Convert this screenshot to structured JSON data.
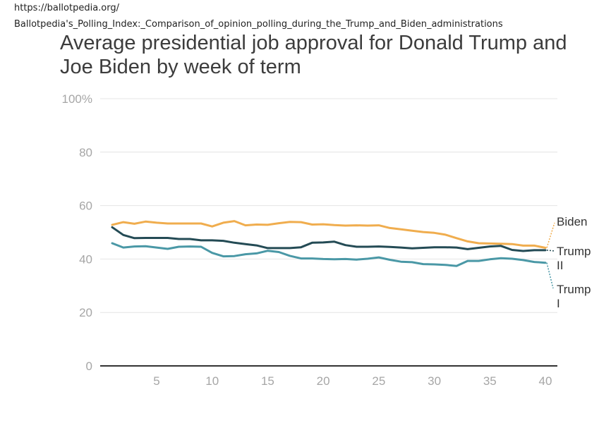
{
  "source": {
    "url": "https://ballotpedia.org/",
    "page": "Ballotpedia's_Polling_Index:_Comparison_of_opinion_polling_during_the_Trump_and_Biden_administrations"
  },
  "chart_data": {
    "type": "line",
    "title": "Average presidential job approval for Donald Trump and Joe Biden by week of term",
    "xlabel": "",
    "ylabel": "",
    "xlim": [
      0,
      41
    ],
    "ylim": [
      0,
      100
    ],
    "x_ticks": [
      5,
      10,
      15,
      20,
      25,
      30,
      35,
      40
    ],
    "x_tick_labels": [
      "5",
      "10",
      "15",
      "20",
      "25",
      "30",
      "35",
      "40"
    ],
    "y_ticks": [
      0,
      20,
      40,
      60,
      80,
      100
    ],
    "y_tick_labels": [
      "0",
      "20",
      "40",
      "60",
      "80",
      "100%"
    ],
    "grid": true,
    "legend": "end-of-line labels (right)",
    "x": [
      1,
      2,
      3,
      4,
      5,
      6,
      7,
      8,
      9,
      10,
      11,
      12,
      13,
      14,
      15,
      16,
      17,
      18,
      19,
      20,
      21,
      22,
      23,
      24,
      25,
      26,
      27,
      28,
      29,
      30,
      31,
      32,
      33,
      34,
      35,
      36,
      37,
      38,
      39,
      40
    ],
    "series": [
      {
        "name": "Biden",
        "label_lines": [
          "Biden"
        ],
        "color": "#f0ad4e",
        "values": [
          52.8,
          53.8,
          53.2,
          54.0,
          53.6,
          53.3,
          53.3,
          53.3,
          53.3,
          52.2,
          53.6,
          54.2,
          52.6,
          52.9,
          52.8,
          53.4,
          53.9,
          53.8,
          52.9,
          53.0,
          52.7,
          52.5,
          52.6,
          52.5,
          52.6,
          51.6,
          51.1,
          50.6,
          50.1,
          49.8,
          49.1,
          47.8,
          46.6,
          45.9,
          45.8,
          45.7,
          45.6,
          45.0,
          45.0,
          44.2
        ]
      },
      {
        "name": "Trump II",
        "label_lines": [
          "Trump",
          "II"
        ],
        "color": "#244b55",
        "values": [
          51.9,
          49.0,
          47.8,
          47.9,
          47.9,
          47.9,
          47.5,
          47.5,
          47.0,
          47.0,
          46.8,
          46.1,
          45.6,
          45.1,
          44.1,
          44.1,
          44.1,
          44.4,
          46.1,
          46.2,
          46.5,
          45.2,
          44.6,
          44.6,
          44.7,
          44.5,
          44.3,
          44.0,
          44.2,
          44.4,
          44.4,
          44.3,
          43.7,
          44.2,
          44.7,
          44.9,
          43.4,
          43.0,
          43.3,
          43.3
        ]
      },
      {
        "name": "Trump I",
        "label_lines": [
          "Trump",
          "I"
        ],
        "color": "#4a98a6",
        "values": [
          45.9,
          44.3,
          44.7,
          44.8,
          44.3,
          43.8,
          44.6,
          44.7,
          44.6,
          42.3,
          41.0,
          41.1,
          41.8,
          42.1,
          43.1,
          42.6,
          41.2,
          40.2,
          40.2,
          40.0,
          39.9,
          40.0,
          39.8,
          40.1,
          40.6,
          39.7,
          39.0,
          38.8,
          38.1,
          38.0,
          37.8,
          37.4,
          39.3,
          39.3,
          39.9,
          40.3,
          40.1,
          39.6,
          38.9,
          38.6
        ]
      }
    ]
  }
}
